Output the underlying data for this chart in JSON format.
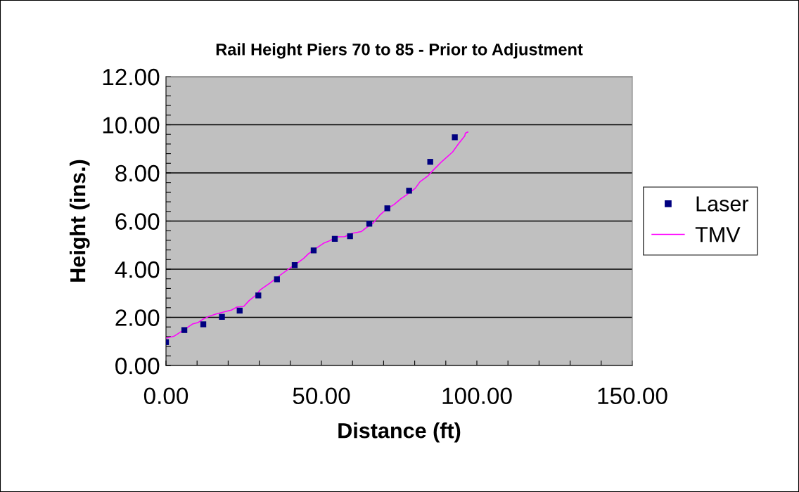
{
  "chart_data": {
    "type": "scatter",
    "title": "Rail Height Piers 70 to 85 - Prior to Adjustment",
    "xlabel": "Distance (ft)",
    "ylabel": "Height (ins.)",
    "series": [
      {
        "name": "Laser",
        "color": "#000080",
        "marker": "square",
        "x": [
          0,
          5.9,
          12.0,
          18.0,
          23.7,
          29.7,
          35.7,
          41.4,
          47.5,
          54.3,
          59.2,
          65.4,
          71.2,
          78.2,
          85.0,
          92.9
        ],
        "values": [
          0.97,
          1.47,
          1.71,
          2.02,
          2.28,
          2.91,
          3.58,
          4.17,
          4.78,
          5.26,
          5.37,
          5.89,
          6.53,
          7.26,
          8.46,
          9.48
        ]
      },
      {
        "name": "TMV",
        "type": "line",
        "color": "#ff00ff",
        "marker": "none",
        "x": [
          0.2,
          2.5,
          6.0,
          8.5,
          10.4,
          11.9,
          13.8,
          16.1,
          19.1,
          21.0,
          22.9,
          25.0,
          26.7,
          28.9,
          30.4,
          33.4,
          36.5,
          39.5,
          41.7,
          44.3,
          45.8,
          48.5,
          50.7,
          52.6,
          54.9,
          57.5,
          59.8,
          62.8,
          64.3,
          66.6,
          68.8,
          71.1,
          73.4,
          75.6,
          77.2,
          80.2,
          81.7,
          84.3,
          85.4,
          88.8,
          92.2,
          94.1,
          96.1,
          96.3,
          97.1
        ],
        "values": [
          1.14,
          1.21,
          1.5,
          1.72,
          1.79,
          1.92,
          2.04,
          2.14,
          2.24,
          2.3,
          2.43,
          2.45,
          2.69,
          2.92,
          3.15,
          3.42,
          3.73,
          4.01,
          4.2,
          4.45,
          4.64,
          4.89,
          5.08,
          5.18,
          5.34,
          5.35,
          5.49,
          5.56,
          5.71,
          5.91,
          6.25,
          6.51,
          6.69,
          6.93,
          7.07,
          7.36,
          7.63,
          7.88,
          8.04,
          8.48,
          8.87,
          9.21,
          9.53,
          9.65,
          9.7
        ]
      }
    ],
    "xlim": [
      0,
      150
    ],
    "xticks": [
      {
        "value": 0,
        "label": "0.00"
      },
      {
        "value": 10,
        "label": null
      },
      {
        "value": 20,
        "label": null
      },
      {
        "value": 30,
        "label": null
      },
      {
        "value": 40,
        "label": null
      },
      {
        "value": 50,
        "label": "50.00"
      },
      {
        "value": 60,
        "label": null
      },
      {
        "value": 70,
        "label": null
      },
      {
        "value": 80,
        "label": null
      },
      {
        "value": 90,
        "label": null
      },
      {
        "value": 100,
        "label": "100.00"
      },
      {
        "value": 110,
        "label": null
      },
      {
        "value": 120,
        "label": null
      },
      {
        "value": 130,
        "label": null
      },
      {
        "value": 140,
        "label": null
      },
      {
        "value": 150,
        "label": "150.00"
      }
    ],
    "ylim": [
      0,
      12
    ],
    "yticks": [
      {
        "value": 0,
        "label": "0.00"
      },
      {
        "value": 0.4,
        "label": null
      },
      {
        "value": 0.8,
        "label": null
      },
      {
        "value": 1.2,
        "label": null
      },
      {
        "value": 1.6,
        "label": null
      },
      {
        "value": 2,
        "label": "2.00"
      },
      {
        "value": 2.4,
        "label": null
      },
      {
        "value": 2.8,
        "label": null
      },
      {
        "value": 3.2,
        "label": null
      },
      {
        "value": 3.6,
        "label": null
      },
      {
        "value": 4,
        "label": "4.00"
      },
      {
        "value": 4.4,
        "label": null
      },
      {
        "value": 4.8,
        "label": null
      },
      {
        "value": 5.2,
        "label": null
      },
      {
        "value": 5.6,
        "label": null
      },
      {
        "value": 6,
        "label": "6.00"
      },
      {
        "value": 6.4,
        "label": null
      },
      {
        "value": 6.8,
        "label": null
      },
      {
        "value": 7.2,
        "label": null
      },
      {
        "value": 7.6,
        "label": null
      },
      {
        "value": 8,
        "label": "8.00"
      },
      {
        "value": 8.4,
        "label": null
      },
      {
        "value": 8.8,
        "label": null
      },
      {
        "value": 9.2,
        "label": null
      },
      {
        "value": 9.6,
        "label": null
      },
      {
        "value": 10,
        "label": "10.00"
      },
      {
        "value": 10.4,
        "label": null
      },
      {
        "value": 10.8,
        "label": null
      },
      {
        "value": 11.2,
        "label": null
      },
      {
        "value": 11.6,
        "label": null
      },
      {
        "value": 12,
        "label": "12.00"
      }
    ],
    "grid": "y",
    "legend": "right"
  }
}
